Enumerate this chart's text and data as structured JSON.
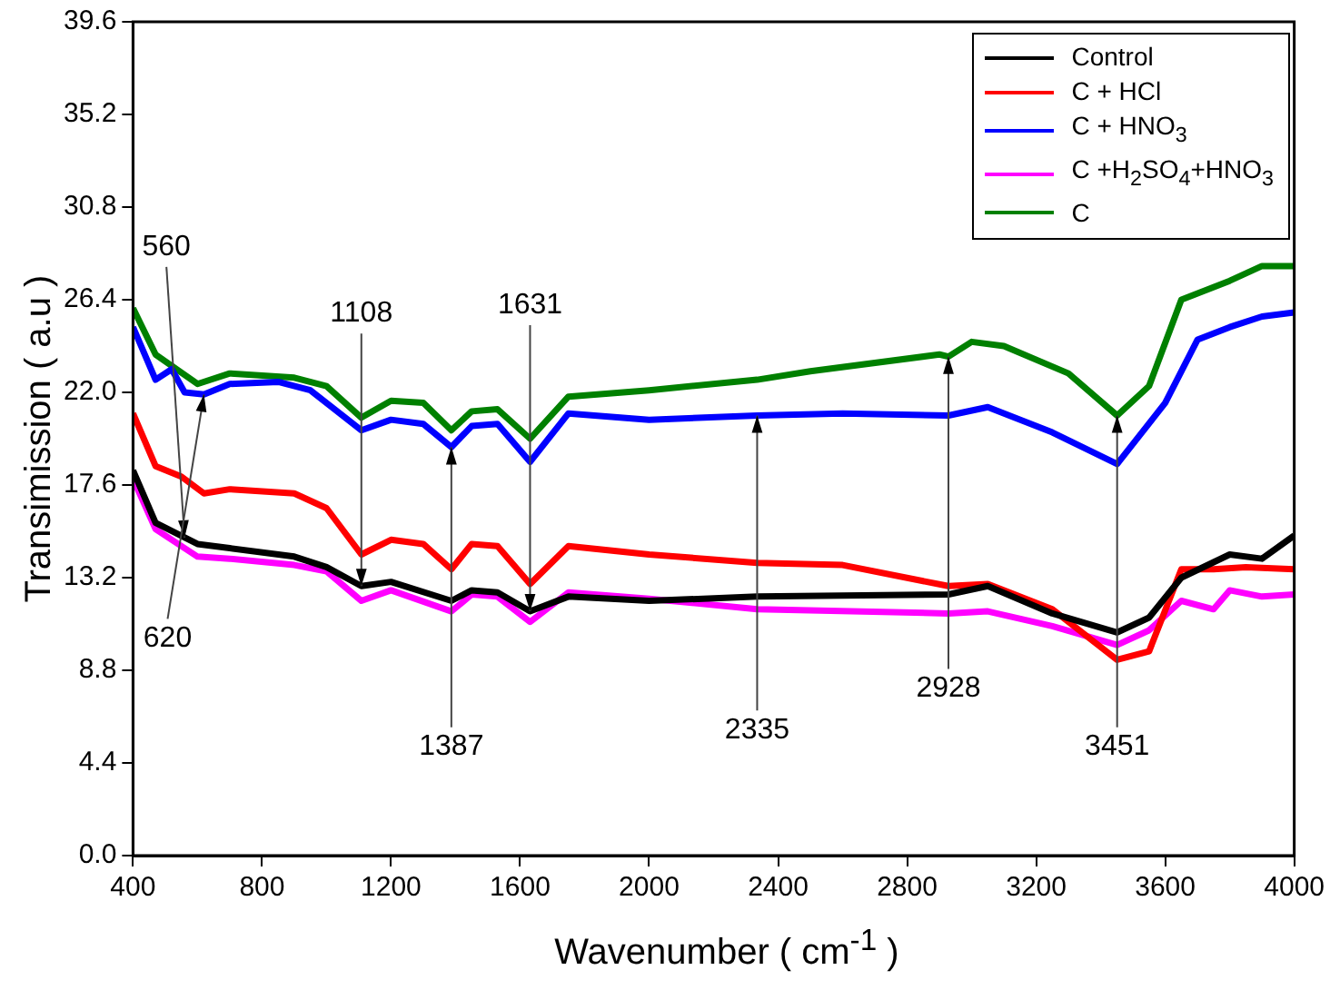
{
  "chart_data": {
    "type": "line",
    "xlabel": "Wavenumber ( cm$^{-1}$ )",
    "ylabel": "Transimission ( a.u )",
    "xlim": [
      400,
      4000
    ],
    "xticks": [
      400,
      800,
      1200,
      1600,
      2000,
      2400,
      2800,
      3200,
      3600,
      4000
    ],
    "ylim": [
      0,
      39.6
    ],
    "yticks": [
      {
        "value": 0,
        "label": "0.0"
      },
      4.4,
      8.8,
      13.2,
      17.6,
      {
        "value": 22,
        "label": "22.0"
      },
      26.4,
      30.8,
      35.2,
      39.6
    ],
    "grid": false,
    "legend": "top right",
    "line_style": "solid",
    "series": [
      {
        "name": "Control",
        "color": "#000000",
        "x": [
          400,
          470,
          600,
          700,
          900,
          1000,
          1108,
          1200,
          1387,
          1450,
          1530,
          1631,
          1750,
          2000,
          2335,
          2928,
          3050,
          3250,
          3451,
          3550,
          3650,
          3800,
          3900,
          4000
        ],
        "values": [
          18.3,
          15.8,
          14.8,
          14.6,
          14.2,
          13.7,
          12.8,
          13.0,
          12.1,
          12.6,
          12.5,
          11.6,
          12.3,
          12.1,
          12.3,
          12.4,
          12.8,
          11.5,
          10.6,
          11.3,
          13.2,
          14.3,
          14.1,
          15.2
        ]
      },
      {
        "name": "C + HCl",
        "color": "#ff0000",
        "x": [
          400,
          470,
          550,
          620,
          700,
          900,
          1000,
          1108,
          1200,
          1300,
          1387,
          1450,
          1530,
          1631,
          1750,
          2000,
          2335,
          2600,
          2928,
          3050,
          3250,
          3451,
          3550,
          3650,
          3750,
          3850,
          4000
        ],
        "values": [
          21.0,
          18.5,
          18.0,
          17.2,
          17.4,
          17.2,
          16.5,
          14.3,
          15.0,
          14.8,
          13.6,
          14.8,
          14.7,
          12.9,
          14.7,
          14.3,
          13.9,
          13.8,
          12.8,
          12.9,
          11.7,
          9.3,
          9.7,
          13.6,
          13.6,
          13.7,
          13.6
        ]
      },
      {
        "name": "C + HNO$_{3}$",
        "color": "#0000ff",
        "x": [
          400,
          470,
          520,
          560,
          620,
          700,
          850,
          950,
          1108,
          1200,
          1300,
          1387,
          1450,
          1530,
          1631,
          1750,
          2000,
          2335,
          2600,
          2928,
          3050,
          3250,
          3451,
          3600,
          3700,
          3800,
          3900,
          4000
        ],
        "values": [
          25.1,
          22.6,
          23.1,
          22.0,
          21.9,
          22.4,
          22.5,
          22.1,
          20.2,
          20.7,
          20.5,
          19.4,
          20.4,
          20.5,
          18.7,
          21.0,
          20.7,
          20.9,
          21.0,
          20.9,
          21.3,
          20.1,
          18.6,
          21.5,
          24.5,
          25.1,
          25.6,
          25.8
        ]
      },
      {
        "name": "C +H$_{2}$SO$_{4}$+HNO$_{3}$",
        "color": "#ff00ff",
        "x": [
          400,
          470,
          600,
          700,
          900,
          1000,
          1108,
          1200,
          1387,
          1450,
          1530,
          1631,
          1750,
          2000,
          2335,
          2928,
          3050,
          3250,
          3451,
          3550,
          3650,
          3750,
          3800,
          3900,
          4000
        ],
        "values": [
          17.9,
          15.5,
          14.2,
          14.1,
          13.8,
          13.5,
          12.1,
          12.6,
          11.6,
          12.4,
          12.3,
          11.1,
          12.5,
          12.2,
          11.7,
          11.5,
          11.6,
          10.9,
          10.0,
          10.7,
          12.1,
          11.7,
          12.6,
          12.3,
          12.4
        ]
      },
      {
        "name": "C",
        "color": "#008000",
        "x": [
          400,
          470,
          600,
          700,
          900,
          1000,
          1108,
          1200,
          1300,
          1387,
          1450,
          1530,
          1631,
          1750,
          2000,
          2335,
          2500,
          2900,
          2928,
          3000,
          3100,
          3300,
          3451,
          3550,
          3650,
          3800,
          3900,
          4000
        ],
        "values": [
          26.0,
          23.8,
          22.4,
          22.9,
          22.7,
          22.3,
          20.8,
          21.6,
          21.5,
          20.2,
          21.1,
          21.2,
          19.8,
          21.8,
          22.1,
          22.6,
          23.0,
          23.8,
          23.7,
          24.4,
          24.2,
          22.9,
          20.9,
          22.3,
          26.4,
          27.3,
          28.0,
          28.0
        ]
      }
    ],
    "annotations": [
      {
        "text": "560",
        "x": 560,
        "y": 15.1
      },
      {
        "text": "620",
        "x": 620,
        "y": 21.9
      },
      {
        "text": "1108",
        "x": 1108,
        "y": 12.8
      },
      {
        "text": "1387",
        "x": 1387,
        "y": 19.4
      },
      {
        "text": "1631",
        "x": 1631,
        "y": 11.6
      },
      {
        "text": "2335",
        "x": 2335,
        "y": 20.9
      },
      {
        "text": "2928",
        "x": 2928,
        "y": 23.7
      },
      {
        "text": "3451",
        "x": 3451,
        "y": 20.9
      }
    ]
  }
}
